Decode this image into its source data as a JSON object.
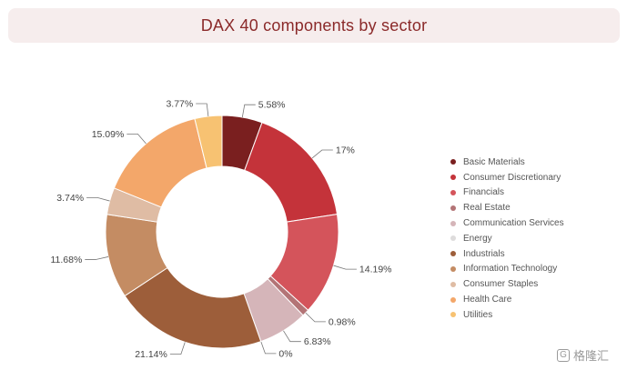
{
  "title": "DAX 40 components by sector",
  "watermark": {
    "icon": "g-logo-icon",
    "text": "格隆汇"
  },
  "chart_data": {
    "type": "pie",
    "donut": true,
    "title": "DAX 40 components by sector",
    "legend_position": "right",
    "series": [
      {
        "name": "Basic Materials",
        "value": 5.58,
        "label": "5.58%",
        "color": "#7a1f1f"
      },
      {
        "name": "Consumer Discretionary",
        "value": 17,
        "label": "17%",
        "color": "#c4333a"
      },
      {
        "name": "Financials",
        "value": 14.19,
        "label": "14.19%",
        "color": "#d4545b"
      },
      {
        "name": "Real Estate",
        "value": 0.98,
        "label": "0.98%",
        "color": "#b37476"
      },
      {
        "name": "Communication Services",
        "value": 6.83,
        "label": "6.83%",
        "color": "#d5b5b9"
      },
      {
        "name": "Energy",
        "value": 0,
        "label": "0%",
        "color": "#dedcdc"
      },
      {
        "name": "Industrials",
        "value": 21.14,
        "label": "21.14%",
        "color": "#9d5e3a"
      },
      {
        "name": "Information Technology",
        "value": 11.68,
        "label": "11.68%",
        "color": "#c48c63"
      },
      {
        "name": "Consumer Staples",
        "value": 3.74,
        "label": "3.74%",
        "color": "#dfbca4"
      },
      {
        "name": "Health Care",
        "value": 15.09,
        "label": "15.09%",
        "color": "#f3a76a"
      },
      {
        "name": "Utilities",
        "value": 3.77,
        "label": "3.77%",
        "color": "#f7c272"
      }
    ]
  }
}
